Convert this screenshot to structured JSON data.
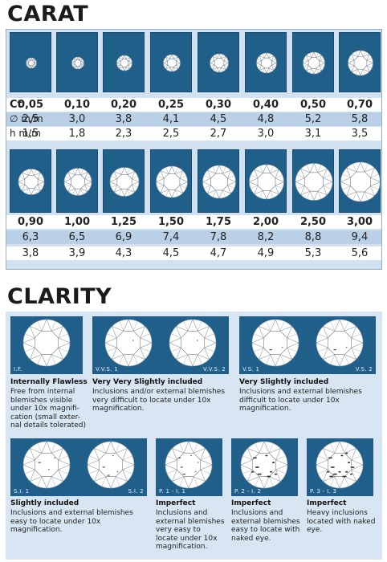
{
  "carat": {
    "title": "CARAT",
    "row_labels": {
      "ct": "Ct",
      "diameter": "∅ m/m",
      "height": "h m/m"
    },
    "top": {
      "weights": [
        "0,05",
        "0,10",
        "0,20",
        "0,25",
        "0,30",
        "0,40",
        "0,50",
        "0,70"
      ],
      "diameters": [
        "2,5",
        "3,0",
        "3,8",
        "4,1",
        "4,5",
        "4,8",
        "5,2",
        "5,8"
      ],
      "heights": [
        "1,5",
        "1,8",
        "2,3",
        "2,5",
        "2,7",
        "3,0",
        "3,1",
        "3,5"
      ]
    },
    "bottom": {
      "weights": [
        "0,90",
        "1,00",
        "1,25",
        "1,50",
        "1,75",
        "2,00",
        "2,50",
        "3,00"
      ],
      "diameters": [
        "6,3",
        "6,5",
        "6,9",
        "7,4",
        "7,8",
        "8,2",
        "8,8",
        "9,4"
      ],
      "heights": [
        "3,8",
        "3,9",
        "4,3",
        "4,5",
        "4,7",
        "4,9",
        "5,3",
        "5,6"
      ]
    }
  },
  "clarity": {
    "title": "CLARITY",
    "grades": [
      {
        "labels": [
          "I.F."
        ],
        "title": "Internally Flawless",
        "description": "Free from internal blemishes visible under 10x magnifi-cation (small exter-nal details tolerated)"
      },
      {
        "labels": [
          "V.V.S. 1",
          "V.V.S. 2"
        ],
        "title": "Very Very Slightly included",
        "description": "Inclusions and/or external blemishes very difficult to locate under 10x magnification."
      },
      {
        "labels": [
          "V.S. 1",
          "V.S. 2"
        ],
        "title": "Very Slightly included",
        "description": "Inclusions and external blemishes difficult to locate under 10x magnification."
      },
      {
        "labels": [
          "S.I. 1",
          "S.I. 2"
        ],
        "title": "Slightly included",
        "description": "Inclusions and external blemishes easy to locate under 10x magnification."
      },
      {
        "labels": [
          "P. 1 - I. 1"
        ],
        "title": "Imperfect",
        "description": "Inclusions and external blemishes very easy to locate under 10x magnification."
      },
      {
        "labels": [
          "P. 2 - I. 2"
        ],
        "title": "Imperfect",
        "description": "Inclusions and external blemishes easy to locate with naked eye."
      },
      {
        "labels": [
          "P. 3 - I. 3"
        ],
        "title": "Imperfect",
        "description": "Heavy inclusions located with naked eye."
      }
    ]
  },
  "colors": {
    "tile_blue": "#1f5f8a",
    "panel_light": "#d2e1ef",
    "row_blue": "#b9d0e6"
  }
}
